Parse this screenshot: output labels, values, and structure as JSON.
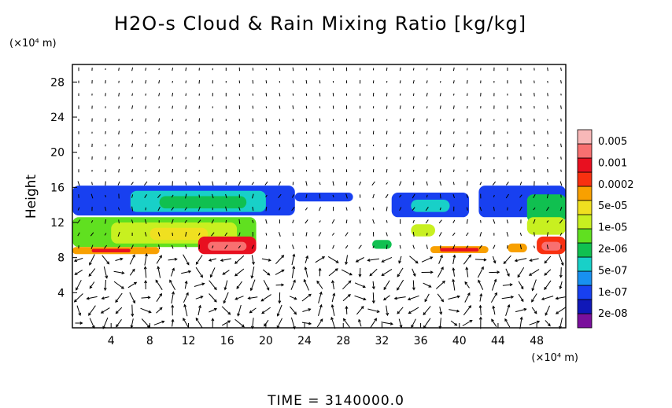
{
  "chart_data": {
    "type": "heatmap",
    "title": "H2O-s Cloud & Rain Mixing Ratio [kg/kg]",
    "xlabel": "",
    "ylabel": "Height",
    "x_unit": "(×10⁴ m)",
    "y_unit": "(×10⁴ m)",
    "xlim": [
      0,
      51
    ],
    "ylim": [
      0,
      30
    ],
    "x_ticks": [
      4,
      8,
      12,
      16,
      20,
      24,
      28,
      32,
      36,
      40,
      44,
      48
    ],
    "y_ticks": [
      4,
      8,
      12,
      16,
      20,
      24,
      28
    ],
    "grid": false,
    "colorbar": {
      "labels": [
        "0.005",
        "0.001",
        "0.0002",
        "5e-05",
        "1e-05",
        "2e-06",
        "5e-07",
        "1e-07",
        "2e-08"
      ],
      "colors": [
        "#7a109c",
        "#1018b8",
        "#1840f0",
        "#1890f0",
        "#18d0c8",
        "#10c050",
        "#60e020",
        "#c8f020",
        "#f0e020",
        "#f8a000",
        "#f83010",
        "#e81020",
        "#f87070",
        "#f8b8b8"
      ]
    },
    "regions": [
      {
        "x0": 0,
        "x1": 23,
        "y0": 12.8,
        "y1": 16.2,
        "level": 2
      },
      {
        "x0": 6,
        "x1": 20,
        "y0": 13.2,
        "y1": 15.6,
        "level": 4
      },
      {
        "x0": 9,
        "x1": 18,
        "y0": 13.6,
        "y1": 15.0,
        "level": 5
      },
      {
        "x0": 23,
        "x1": 29,
        "y0": 14.4,
        "y1": 15.4,
        "level": 2
      },
      {
        "x0": 33,
        "x1": 41,
        "y0": 12.6,
        "y1": 15.4,
        "level": 2
      },
      {
        "x0": 35,
        "x1": 39,
        "y0": 13.2,
        "y1": 14.6,
        "level": 4
      },
      {
        "x0": 42,
        "x1": 51,
        "y0": 12.6,
        "y1": 16.2,
        "level": 2
      },
      {
        "x0": 47,
        "x1": 51,
        "y0": 12.0,
        "y1": 15.2,
        "level": 5
      },
      {
        "x0": 0,
        "x1": 19,
        "y0": 9.2,
        "y1": 12.6,
        "level": 6
      },
      {
        "x0": 4,
        "x1": 17,
        "y0": 9.6,
        "y1": 12.0,
        "level": 7
      },
      {
        "x0": 8,
        "x1": 14,
        "y0": 10.0,
        "y1": 11.4,
        "level": 8
      },
      {
        "x0": 13,
        "x1": 19,
        "y0": 8.4,
        "y1": 10.4,
        "level": 11
      },
      {
        "x0": 14,
        "x1": 18,
        "y0": 8.8,
        "y1": 9.8,
        "level": 12
      },
      {
        "x0": 0,
        "x1": 9,
        "y0": 8.4,
        "y1": 9.2,
        "level": 9
      },
      {
        "x0": 2,
        "x1": 6,
        "y0": 8.6,
        "y1": 9.0,
        "level": 11
      },
      {
        "x0": 37,
        "x1": 43,
        "y0": 8.5,
        "y1": 9.3,
        "level": 9
      },
      {
        "x0": 38,
        "x1": 42,
        "y0": 8.7,
        "y1": 9.1,
        "level": 11
      },
      {
        "x0": 45,
        "x1": 47,
        "y0": 8.6,
        "y1": 9.6,
        "level": 9
      },
      {
        "x0": 48,
        "x1": 51,
        "y0": 8.4,
        "y1": 10.4,
        "level": 10
      },
      {
        "x0": 48.5,
        "x1": 50.5,
        "y0": 8.8,
        "y1": 9.8,
        "level": 12
      },
      {
        "x0": 47,
        "x1": 51,
        "y0": 10.6,
        "y1": 12.6,
        "level": 7
      },
      {
        "x0": 35,
        "x1": 37.5,
        "y0": 10.4,
        "y1": 11.8,
        "level": 7
      },
      {
        "x0": 31,
        "x1": 33,
        "y0": 9.0,
        "y1": 10.0,
        "level": 5
      }
    ],
    "wind_vectors": "shown"
  },
  "footer": "TIME = 3140000.0"
}
